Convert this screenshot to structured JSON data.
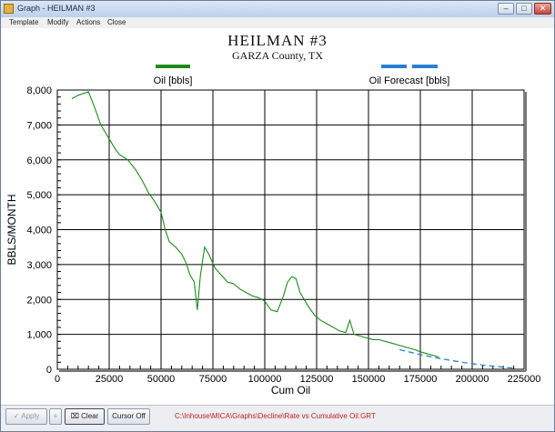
{
  "window": {
    "title": "Graph - HEILMAN #3",
    "controls": {
      "minimize": "–",
      "maximize": "□",
      "close": "✕"
    }
  },
  "menu": {
    "items": [
      "Template",
      "Modify",
      "Actions",
      "Close"
    ]
  },
  "header": {
    "title": "HEILMAN #3",
    "subtitle": "GARZA County, TX"
  },
  "colors": {
    "oil": "#1e8a1e",
    "forecast": "#2b7fd0",
    "grid": "#000000",
    "status_text": "#c02020"
  },
  "toolbar": {
    "apply_label": "Apply",
    "plus_label": "+",
    "clear_label": "Clear",
    "cursor_label": "Cursor Off",
    "status_path": "C:\\Inhouse\\MICA\\Graphs\\Decline\\Rate vs Cumulative Oil.GRT"
  },
  "chart_data": {
    "type": "line",
    "xlabel": "Cum Oil",
    "ylabel": "BBLS/MONTH",
    "xlim": [
      0,
      225000
    ],
    "ylim": [
      0,
      8000
    ],
    "x_ticks": [
      "0",
      "25000",
      "50000",
      "75000",
      "100000",
      "125000",
      "150000",
      "175000",
      "200000",
      "225000"
    ],
    "y_ticks": [
      "0",
      "1,000",
      "2,000",
      "3,000",
      "4,000",
      "5,000",
      "6,000",
      "7,000",
      "8,000"
    ],
    "grid": true,
    "legend": "top",
    "series": [
      {
        "name": "Oil [bbls]",
        "style": "solid",
        "x": [
          7000,
          10000,
          15000,
          18000,
          21000,
          25000,
          28000,
          30000,
          34000,
          38000,
          41000,
          44000,
          47000,
          50000,
          52000,
          54000,
          57000,
          60000,
          62000,
          64000,
          66000,
          67500,
          69000,
          71000,
          73000,
          76000,
          79000,
          82000,
          85000,
          88000,
          91000,
          94000,
          97000,
          100000,
          103000,
          106000,
          109000,
          111000,
          113000,
          115000,
          117000,
          119000,
          121000,
          124000,
          127000,
          130000,
          133000,
          136000,
          139000,
          141000,
          143000,
          146000,
          149000,
          152000,
          155000,
          158000,
          161000,
          164000,
          167000,
          170000,
          173000,
          175000,
          178000,
          181000,
          184000
        ],
        "y": [
          7750,
          7850,
          7950,
          7500,
          7000,
          6600,
          6300,
          6150,
          6000,
          5700,
          5400,
          5050,
          4800,
          4500,
          4000,
          3650,
          3500,
          3300,
          3050,
          2700,
          2500,
          1700,
          2700,
          3500,
          3300,
          2900,
          2700,
          2500,
          2450,
          2300,
          2200,
          2100,
          2050,
          1950,
          1700,
          1650,
          2100,
          2500,
          2650,
          2600,
          2200,
          2000,
          1800,
          1550,
          1400,
          1300,
          1200,
          1100,
          1050,
          1400,
          1000,
          950,
          900,
          850,
          850,
          800,
          750,
          700,
          650,
          600,
          550,
          500,
          450,
          400,
          350
        ]
      },
      {
        "name": "Oil Forecast [bbls]",
        "style": "dashed",
        "x": [
          165000,
          175000,
          185000,
          195000,
          205000,
          215000,
          220000
        ],
        "y": [
          560,
          420,
          300,
          200,
          120,
          60,
          30
        ]
      }
    ]
  }
}
